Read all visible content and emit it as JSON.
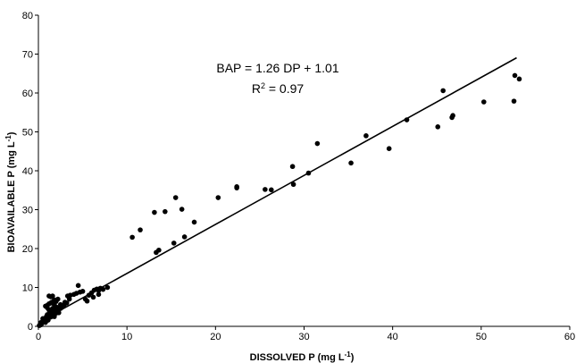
{
  "chart_data": {
    "type": "scatter",
    "title": "",
    "xlabel": {
      "prefix": "DISSOLVED P (mg L",
      "sup": "-1",
      "suffix": ")"
    },
    "ylabel": {
      "prefix": "BIOAVAILABLE P (mg L",
      "sup": "-1",
      "suffix": ")"
    },
    "xlim": [
      0,
      60
    ],
    "ylim": [
      0,
      80
    ],
    "xticks": [
      0,
      10,
      20,
      30,
      40,
      50,
      60
    ],
    "yticks": [
      0,
      10,
      20,
      30,
      40,
      50,
      60,
      70,
      80
    ],
    "grid": false,
    "legend": "none",
    "equation": "BAP = 1.26 DP + 1.01",
    "r2": {
      "prefix": "R",
      "sup": "2",
      "suffix": " = 0.97"
    },
    "fit_line": {
      "slope": 1.26,
      "intercept": 1.01,
      "x_range": [
        0,
        54
      ]
    },
    "point_color": "#000000",
    "series": [
      {
        "x": [
          0.1,
          0.2,
          0.3,
          0.3,
          0.4,
          0.5,
          0.5,
          0.6,
          0.7,
          0.8,
          0.9,
          1.0,
          1.0,
          1.1,
          1.2,
          1.3,
          1.4,
          1.5,
          1.5,
          1.6,
          1.7,
          1.8,
          1.9,
          2.0,
          2.1,
          2.2,
          2.3,
          2.5,
          2.6,
          0.8,
          1.0,
          1.2,
          1.4,
          1.6,
          1.8,
          2.0,
          2.2,
          0.5,
          0.7,
          0.9,
          1.1,
          1.3,
          1.5,
          1.7,
          1.2,
          1.4,
          1.6,
          1.8,
          2.0,
          2.3,
          2.6,
          2.9,
          3.2,
          3.5,
          3.0,
          3.3,
          3.6,
          4.0,
          4.3,
          4.7,
          5.0,
          5.3,
          5.7,
          6.0,
          6.3,
          6.6,
          6.8,
          7.0,
          7.3,
          7.8,
          1.0,
          1.5,
          2.0,
          1.2,
          1.8,
          2.2,
          2.5,
          4.5,
          5.5,
          6.2,
          6.8,
          10.6,
          11.5,
          13.1,
          13.3,
          13.6,
          14.3,
          15.3,
          15.5,
          16.2,
          16.5,
          17.6,
          20.3,
          22.4,
          22.4,
          25.6,
          26.3,
          28.7,
          28.8,
          30.5,
          31.5,
          35.3,
          37.0,
          39.6,
          41.6,
          45.1,
          45.7,
          46.7,
          46.8,
          50.3,
          53.7,
          53.8,
          54.3
        ],
        "y": [
          0.2,
          0.5,
          0.4,
          1.0,
          0.8,
          1.2,
          2.0,
          1.5,
          1.8,
          1.0,
          2.5,
          2.2,
          3.0,
          1.6,
          2.8,
          3.5,
          2.4,
          3.2,
          4.0,
          2.6,
          3.6,
          2.5,
          4.2,
          3.4,
          3.8,
          4.4,
          3.5,
          4.6,
          5.0,
          5.2,
          4.8,
          5.8,
          6.0,
          4.6,
          5.5,
          6.4,
          7.0,
          1.4,
          1.6,
          2.0,
          2.4,
          2.8,
          3.2,
          3.6,
          7.8,
          7.6,
          7.8,
          6.8,
          5.0,
          4.5,
          5.2,
          5.5,
          6.0,
          7.0,
          6.2,
          7.8,
          8.0,
          8.2,
          8.5,
          8.8,
          9.0,
          7.0,
          8.0,
          8.6,
          9.3,
          9.6,
          9.2,
          9.8,
          9.5,
          10.0,
          5.4,
          6.2,
          6.6,
          4.2,
          4.0,
          4.8,
          5.6,
          10.5,
          6.5,
          7.5,
          8.2,
          22.9,
          24.8,
          29.3,
          19.0,
          19.6,
          29.5,
          21.4,
          33.1,
          30.1,
          23.0,
          26.8,
          33.1,
          35.6,
          35.9,
          35.2,
          35.1,
          41.1,
          36.5,
          39.4,
          47.0,
          42.0,
          49.0,
          45.7,
          53.1,
          51.3,
          60.6,
          53.7,
          54.2,
          57.7,
          57.9,
          64.5,
          63.6
        ]
      }
    ]
  }
}
